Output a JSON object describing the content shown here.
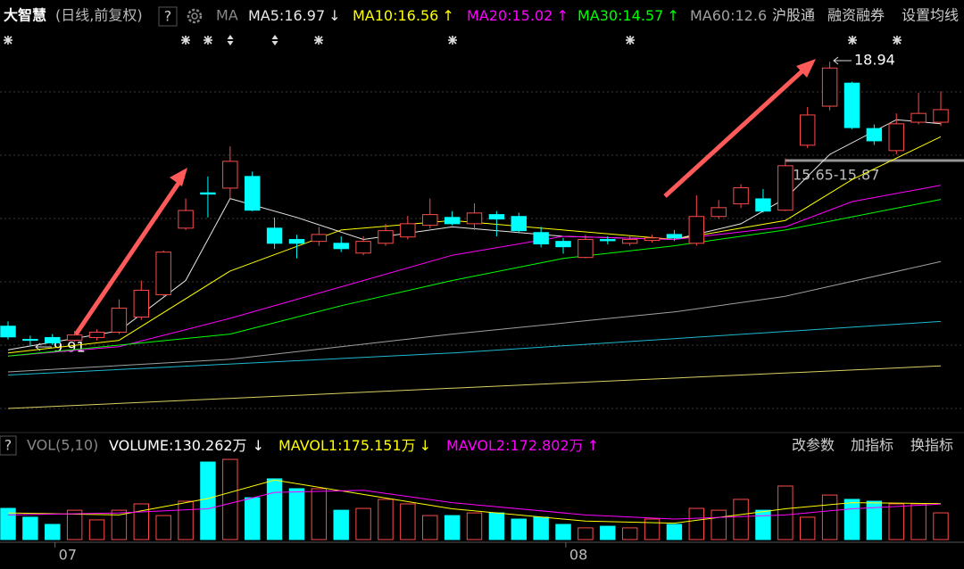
{
  "chart_data": {
    "type": "candlestick",
    "title": "大智慧",
    "subtitle": "(日线,前复权)",
    "help": "?",
    "ma_button": "MA",
    "links": [
      "沪股通",
      "融资融券",
      "设置均线"
    ],
    "categories": [
      null,
      null,
      null,
      "07",
      null,
      null,
      null,
      null,
      null,
      null,
      null,
      null,
      null,
      null,
      null,
      null,
      null,
      null,
      null,
      null,
      null,
      null,
      null,
      null,
      null,
      null,
      "08",
      null,
      null,
      null,
      null,
      null,
      null,
      null,
      null,
      null,
      null,
      null,
      null,
      null,
      null,
      null,
      null
    ],
    "open": [
      10.55,
      10.13,
      10.19,
      10.1,
      10.19,
      10.36,
      10.84,
      11.55,
      13.66,
      14.78,
      14.93,
      15.3,
      13.66,
      13.3,
      13.24,
      13.18,
      12.87,
      13.18,
      13.38,
      13.75,
      14.0,
      13.8,
      14.09,
      14.03,
      13.52,
      13.24,
      12.73,
      13.3,
      13.18,
      13.27,
      13.46,
      13.18,
      14.03,
      14.43,
      14.59,
      14.23,
      16.29,
      17.53,
      18.26,
      16.82,
      16.12,
      17.02,
      17.02
    ],
    "high": [
      10.7,
      10.25,
      10.3,
      10.4,
      10.45,
      11.4,
      12.0,
      12.95,
      14.6,
      15.3,
      16.25,
      15.45,
      14.0,
      13.45,
      13.7,
      13.4,
      13.4,
      13.8,
      14.05,
      14.6,
      14.2,
      14.45,
      14.2,
      14.15,
      13.7,
      13.35,
      13.45,
      13.4,
      13.4,
      13.45,
      13.6,
      14.7,
      14.55,
      15.05,
      14.9,
      15.87,
      17.5,
      18.94,
      18.3,
      16.95,
      17.3,
      17.95,
      18.0
    ],
    "low": [
      10.13,
      9.91,
      9.95,
      10.05,
      10.1,
      10.3,
      10.75,
      11.5,
      13.6,
      14.0,
      14.6,
      14.2,
      13.0,
      12.7,
      13.1,
      12.9,
      12.8,
      13.1,
      13.3,
      13.65,
      13.75,
      13.6,
      13.4,
      13.5,
      13.05,
      12.85,
      12.7,
      13.15,
      13.1,
      13.2,
      13.25,
      13.1,
      13.95,
      14.3,
      14.15,
      14.2,
      16.2,
      17.4,
      16.8,
      16.3,
      16.0,
      16.95,
      16.9
    ],
    "close": [
      10.21,
      10.1,
      10.02,
      10.27,
      10.36,
      11.12,
      11.69,
      12.9,
      14.22,
      14.74,
      15.78,
      14.23,
      13.18,
      13.18,
      13.46,
      13.01,
      13.24,
      13.58,
      13.8,
      14.09,
      13.8,
      14.14,
      13.95,
      13.58,
      13.16,
      13.07,
      13.3,
      13.26,
      13.3,
      13.35,
      13.35,
      14.03,
      14.31,
      14.94,
      14.2,
      15.64,
      17.25,
      18.74,
      16.85,
      16.43,
      16.97,
      17.3,
      17.42
    ],
    "up_color": "#ff4a4a",
    "down_color": "#00ffff",
    "ylim": [
      7.6,
      19.2
    ],
    "lines": [
      {
        "name": "MA5",
        "legend": "MA5:16.97",
        "trend": "↓",
        "color": "#e8e8e8",
        "x": [
          0,
          5,
          8,
          10,
          13,
          16,
          20,
          25,
          30,
          33,
          35,
          37,
          40,
          42
        ],
        "values": [
          9.8,
          10.4,
          12.0,
          14.6,
          14.0,
          13.3,
          13.7,
          13.4,
          13.3,
          13.8,
          14.6,
          16.0,
          17.1,
          16.97
        ]
      },
      {
        "name": "MA10",
        "legend": "MA10:16.56",
        "trend": "↑",
        "color": "#ffff00",
        "x": [
          0,
          5,
          10,
          15,
          20,
          25,
          30,
          35,
          38,
          42
        ],
        "values": [
          9.7,
          10.1,
          12.3,
          13.6,
          13.9,
          13.6,
          13.3,
          13.9,
          15.2,
          16.56
        ]
      },
      {
        "name": "MA20",
        "legend": "MA20:15.02",
        "trend": "↑",
        "color": "#ff00ff",
        "x": [
          0,
          5,
          10,
          15,
          20,
          25,
          30,
          35,
          38,
          42
        ],
        "values": [
          9.6,
          9.9,
          10.8,
          11.8,
          12.8,
          13.4,
          13.3,
          13.7,
          14.5,
          15.02
        ]
      },
      {
        "name": "MA30",
        "legend": "MA30:14.57",
        "trend": "↑",
        "color": "#00ff00",
        "x": [
          0,
          10,
          15,
          20,
          25,
          30,
          35,
          42
        ],
        "values": [
          9.6,
          10.3,
          11.2,
          12.0,
          12.7,
          13.1,
          13.6,
          14.57
        ]
      },
      {
        "name": "MA60",
        "legend": "MA60:12.6",
        "trend": "",
        "color": "#a0a0a0",
        "x": [
          0,
          10,
          20,
          30,
          35,
          42
        ],
        "values": [
          9.1,
          9.5,
          10.3,
          11.0,
          11.5,
          12.6
        ]
      },
      {
        "color": "#1fb8d0",
        "x": [
          0,
          20,
          42
        ],
        "values": [
          9.0,
          9.7,
          10.7
        ]
      },
      {
        "color": "#d8d060",
        "x": [
          0,
          42
        ],
        "values": [
          7.94,
          9.29
        ]
      }
    ],
    "annotations": [
      "9.91",
      "18.94",
      "15.65-15.87"
    ],
    "volume": {
      "help": "?",
      "title": "VOL(5,10)",
      "legend": "VOLUME:130.262万",
      "trend": "↓",
      "values": [
        152,
        109,
        74,
        143,
        96,
        143,
        174,
        117,
        187,
        378,
        391,
        204,
        296,
        248,
        248,
        143,
        152,
        196,
        174,
        117,
        117,
        130,
        130,
        100,
        109,
        74,
        57,
        65,
        57,
        100,
        74,
        152,
        143,
        196,
        143,
        261,
        109,
        217,
        196,
        187,
        174,
        174,
        130.262
      ],
      "ylim": [
        0,
        400
      ],
      "lines": [
        {
          "name": "MAVOL1",
          "legend": "MAVOL1:175.151万",
          "trend": "↓",
          "color": "#ffff00",
          "x": [
            0,
            5,
            9,
            12,
            16,
            20,
            26,
            30,
            35,
            38,
            42
          ],
          "values": [
            130,
            120,
            200,
            290,
            220,
            150,
            90,
            80,
            150,
            180,
            175.151
          ]
        },
        {
          "name": "MAVOL2",
          "legend": "MAVOL2:172.802万",
          "trend": "↑",
          "color": "#ff00ff",
          "x": [
            0,
            5,
            9,
            12,
            16,
            20,
            26,
            30,
            35,
            38,
            42
          ],
          "values": [
            120,
            130,
            150,
            230,
            240,
            180,
            120,
            100,
            120,
            150,
            172.802
          ]
        }
      ],
      "buttons": [
        "改参数",
        "加指标",
        "换指标"
      ]
    }
  }
}
